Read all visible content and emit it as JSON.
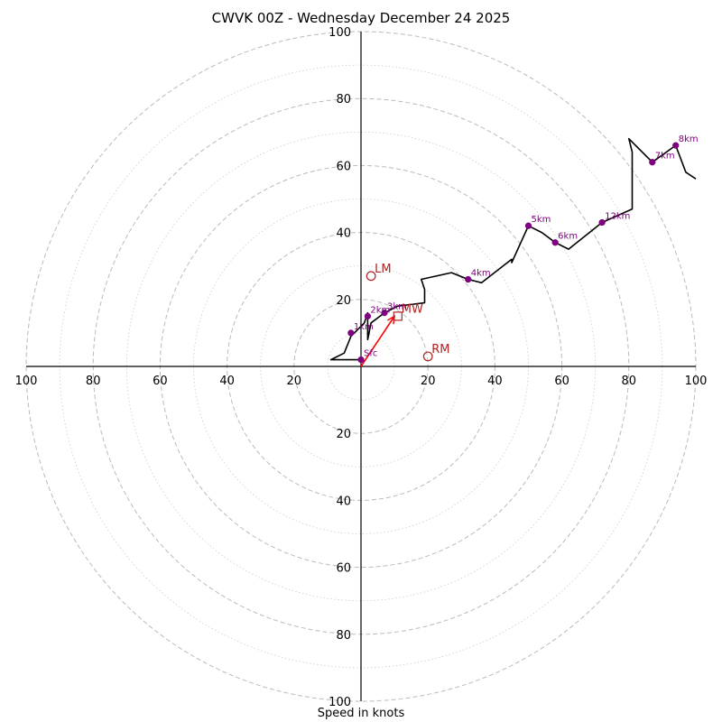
{
  "chart_data": {
    "type": "hodograph",
    "title": "CWVK 00Z - Wednesday December 24 2025",
    "xlabel": "Speed in knots",
    "units": "knots",
    "range": [
      -100,
      100
    ],
    "rings": {
      "major": [
        20,
        40,
        60,
        80,
        100
      ],
      "minor": [
        10,
        30,
        50,
        70,
        90
      ],
      "ticks": [
        100,
        80,
        60,
        40,
        20
      ]
    },
    "hodograph": [
      [
        0,
        2
      ],
      [
        -9,
        2
      ],
      [
        -5,
        4
      ],
      [
        -3,
        9
      ],
      [
        1,
        13
      ],
      [
        2,
        16
      ],
      [
        2,
        8
      ],
      [
        3,
        13
      ],
      [
        7,
        16
      ],
      [
        11,
        18
      ],
      [
        19,
        19
      ],
      [
        19,
        23
      ],
      [
        18,
        26
      ],
      [
        27,
        28
      ],
      [
        32,
        26
      ],
      [
        36,
        25
      ],
      [
        45,
        32
      ],
      [
        45,
        31
      ],
      [
        50,
        42
      ],
      [
        54,
        40
      ],
      [
        58,
        37
      ],
      [
        62,
        35
      ],
      [
        72,
        43
      ],
      [
        81,
        47
      ],
      [
        81,
        64
      ],
      [
        80,
        68
      ],
      [
        87,
        61
      ],
      [
        94,
        66
      ],
      [
        97,
        58
      ],
      [
        100,
        56
      ]
    ],
    "height_markers": [
      {
        "label": "Sfc",
        "u": 0,
        "v": 2
      },
      {
        "label": "1km",
        "u": -3,
        "v": 10
      },
      {
        "label": "2km",
        "u": 2,
        "v": 15
      },
      {
        "label": "3km",
        "u": 7,
        "v": 16
      },
      {
        "label": "4km",
        "u": 32,
        "v": 26
      },
      {
        "label": "5km",
        "u": 50,
        "v": 42
      },
      {
        "label": "6km",
        "u": 58,
        "v": 37
      },
      {
        "label": "12km",
        "u": 72,
        "v": 43
      },
      {
        "label": "7km",
        "u": 87,
        "v": 61
      },
      {
        "label": "8km",
        "u": 94,
        "v": 66
      }
    ],
    "storm_motion": [
      {
        "label": "LM",
        "u": 3,
        "v": 27,
        "marker": "circle"
      },
      {
        "label": "RM",
        "u": 20,
        "v": 3,
        "marker": "circle"
      },
      {
        "label": "MW",
        "u": 11,
        "v": 15,
        "marker": "square"
      }
    ],
    "shear_vector": {
      "from": [
        0,
        0
      ],
      "to": [
        10,
        15
      ]
    },
    "colors": {
      "hodograph": "#000000",
      "marker": "#800080",
      "storm": "#b22222",
      "shear": "#ff0000",
      "ring": "#bbbbbb",
      "axis": "#000000"
    }
  }
}
